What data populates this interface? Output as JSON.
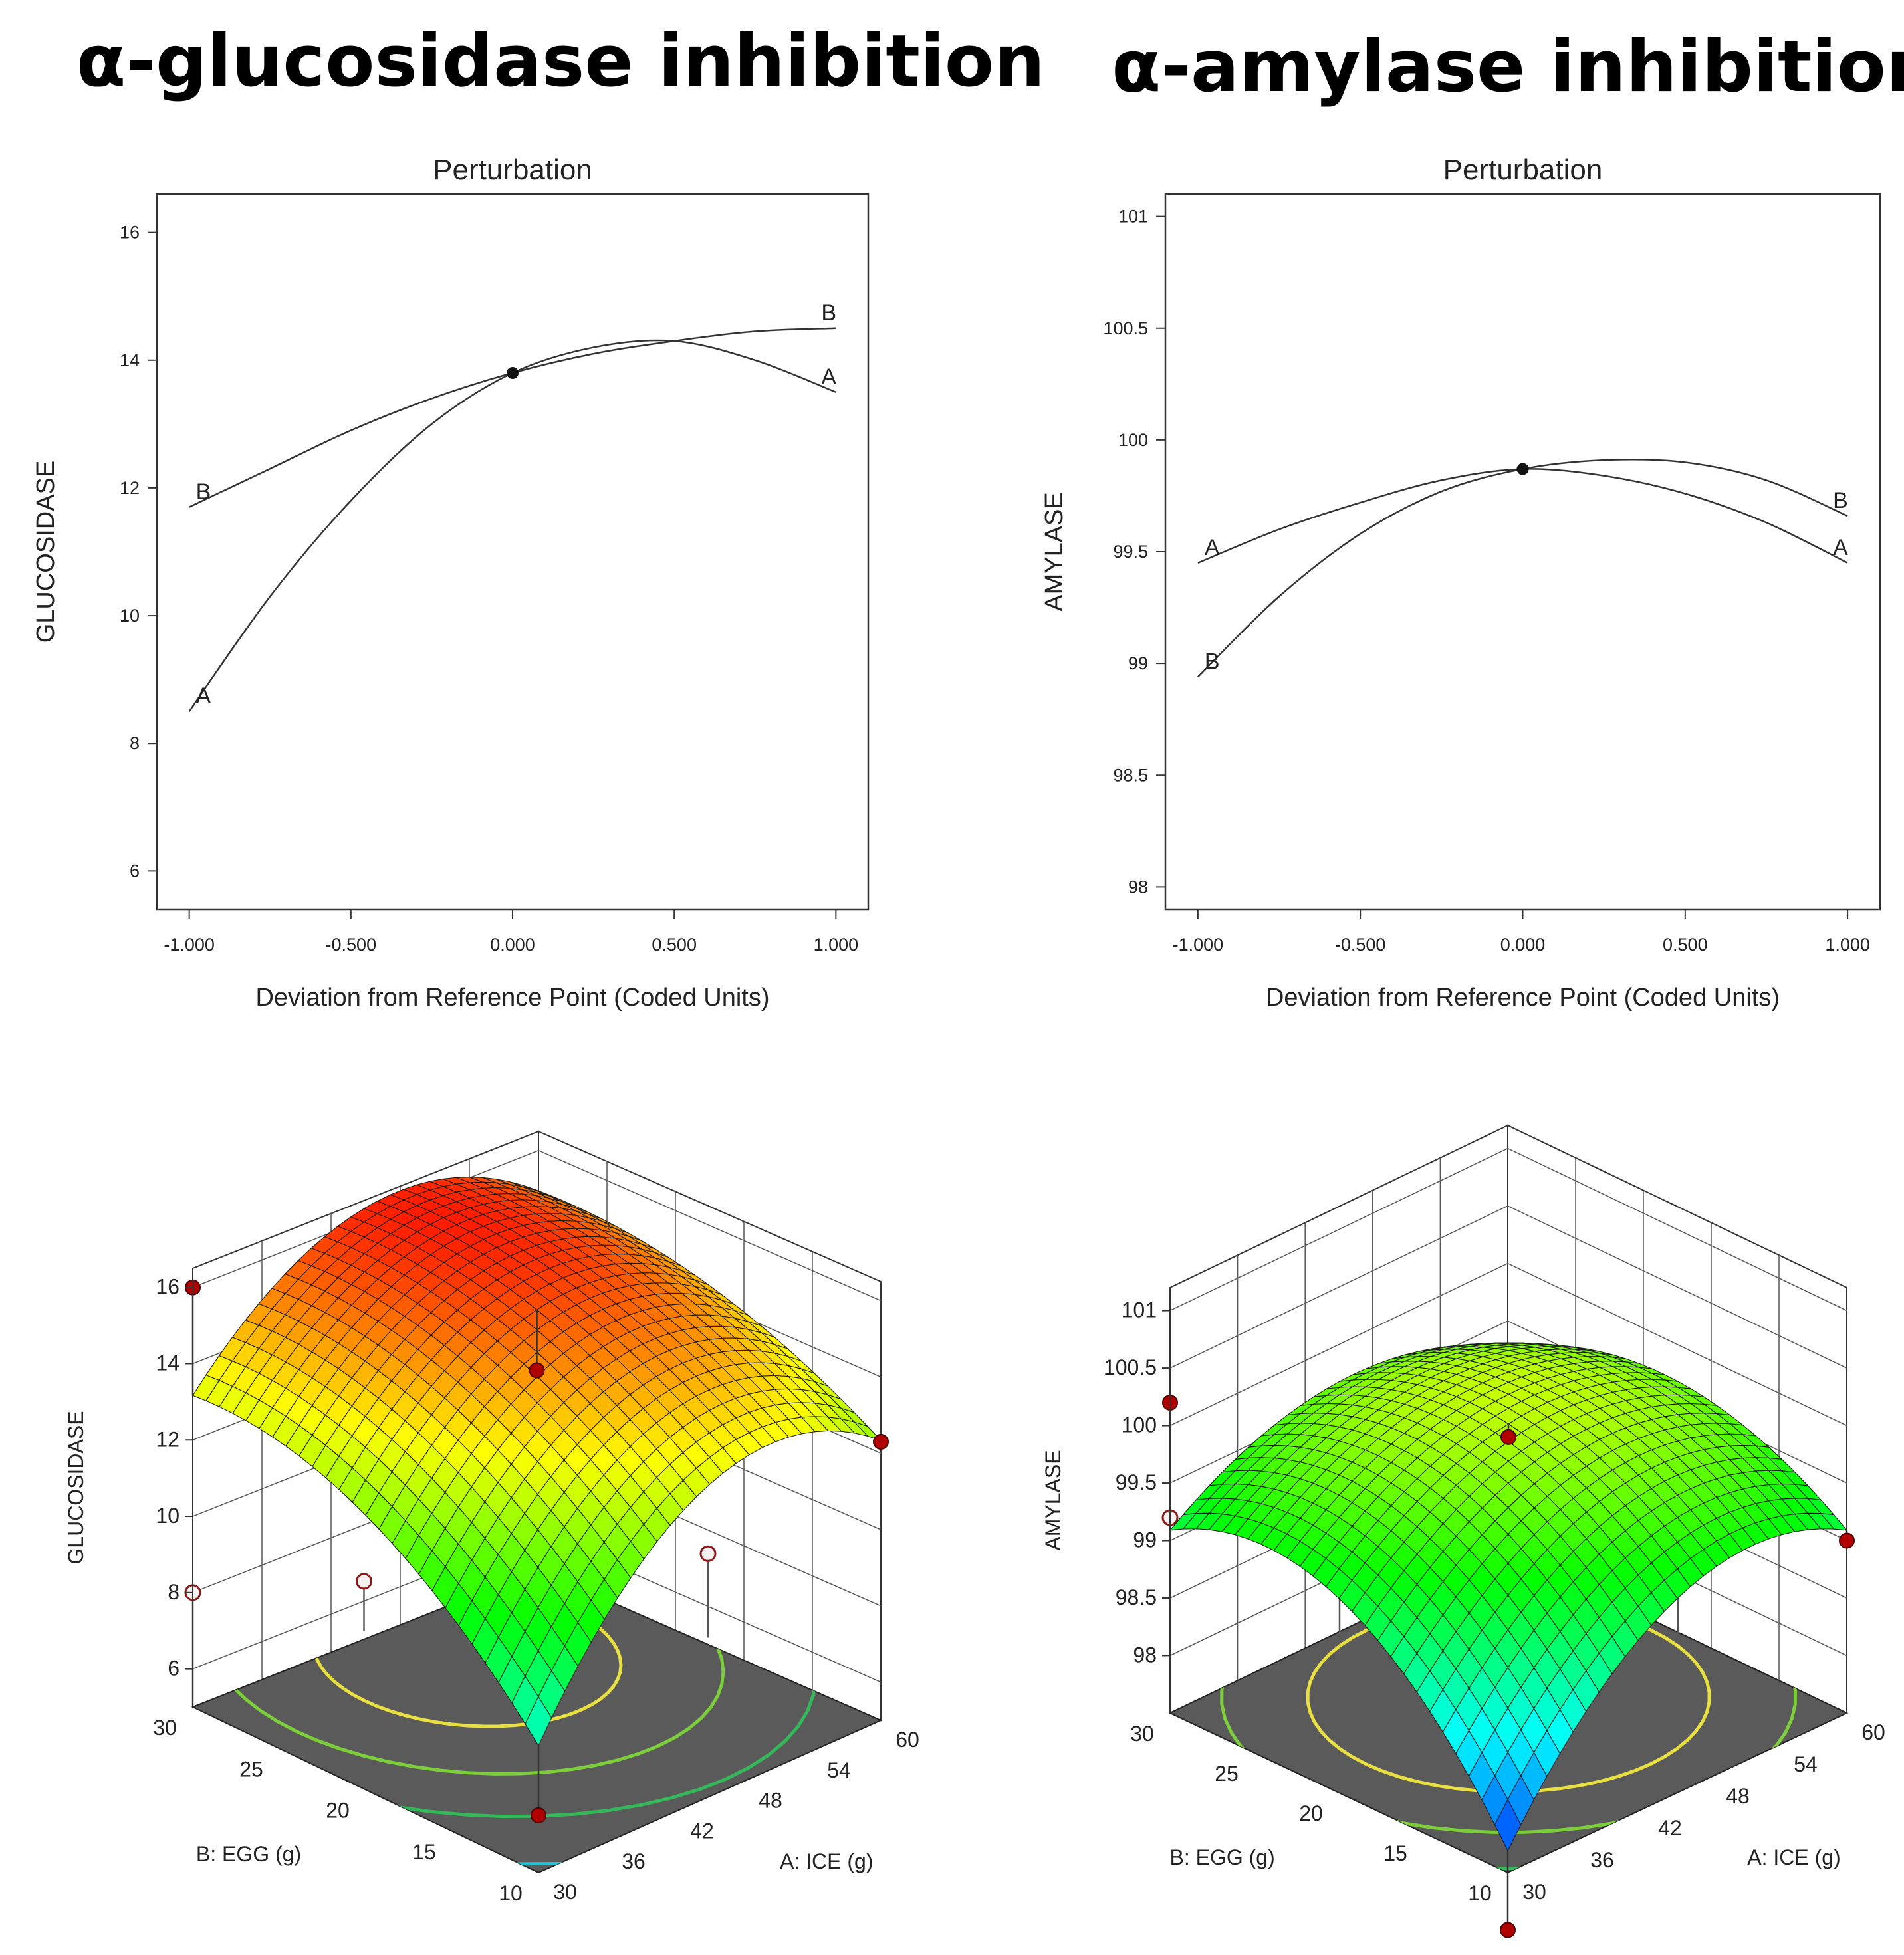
{
  "panels": {
    "left_title": "α-glucosidase inhibition",
    "right_title": "α-amylase inhibition"
  },
  "chart_data": [
    {
      "type": "line",
      "id": "glu-pert",
      "title": "Perturbation",
      "xlabel": "Deviation from Reference Point (Coded Units)",
      "ylabel": "GLUCOSIDASE",
      "xlim": [
        -1.1,
        1.1
      ],
      "ylim": [
        5.4,
        16.6
      ],
      "xticks": [
        -1,
        -0.5,
        0,
        0.5,
        1
      ],
      "xtick_labels": [
        "-1.000",
        "-0.500",
        "0.000",
        "0.500",
        "1.000"
      ],
      "yticks": [
        6,
        8,
        10,
        12,
        14,
        16
      ],
      "ytick_labels": [
        "6",
        "8",
        "10",
        "12",
        "14",
        "16"
      ],
      "reference_point": {
        "x": 0,
        "y": 13.8
      },
      "series": [
        {
          "name": "A",
          "x": [
            -1,
            -0.75,
            -0.5,
            -0.25,
            0,
            0.25,
            0.5,
            0.75,
            1
          ],
          "y": [
            8.5,
            10.3,
            11.8,
            13.0,
            13.8,
            14.2,
            14.3,
            14.0,
            13.5
          ]
        },
        {
          "name": "B",
          "x": [
            -1,
            -0.75,
            -0.5,
            -0.25,
            0,
            0.25,
            0.5,
            0.75,
            1
          ],
          "y": [
            11.7,
            12.3,
            12.9,
            13.4,
            13.8,
            14.1,
            14.3,
            14.45,
            14.5
          ]
        }
      ]
    },
    {
      "type": "line",
      "id": "amy-pert",
      "title": "Perturbation",
      "xlabel": "Deviation from Reference Point (Coded Units)",
      "ylabel": "AMYLASE",
      "xlim": [
        -1.1,
        1.1
      ],
      "ylim": [
        97.9,
        101.1
      ],
      "xticks": [
        -1,
        -0.5,
        0,
        0.5,
        1
      ],
      "xtick_labels": [
        "-1.000",
        "-0.500",
        "0.000",
        "0.500",
        "1.000"
      ],
      "yticks": [
        98,
        98.5,
        99,
        99.5,
        100,
        100.5,
        101
      ],
      "ytick_labels": [
        "98",
        "98.5",
        "99",
        "99.5",
        "100",
        "100.5",
        "101"
      ],
      "reference_point": {
        "x": 0,
        "y": 99.87
      },
      "series": [
        {
          "name": "A",
          "x": [
            -1,
            -0.75,
            -0.5,
            -0.25,
            0,
            0.25,
            0.5,
            0.75,
            1
          ],
          "y": [
            99.45,
            99.6,
            99.72,
            99.82,
            99.87,
            99.84,
            99.76,
            99.63,
            99.45
          ]
        },
        {
          "name": "B",
          "x": [
            -1,
            -0.75,
            -0.5,
            -0.25,
            0,
            0.25,
            0.5,
            0.75,
            1
          ],
          "y": [
            98.94,
            99.3,
            99.58,
            99.77,
            99.87,
            99.91,
            99.9,
            99.82,
            99.66
          ]
        }
      ]
    },
    {
      "type": "surface3d",
      "id": "glu-3d",
      "zlabel": "GLUCOSIDASE",
      "xlabel": "A: ICE (g)",
      "ylabel": "B: EGG (g)",
      "xticks": [
        "30",
        "36",
        "42",
        "48",
        "54",
        "60"
      ],
      "yticks": [
        "10",
        "15",
        "20",
        "25",
        "30"
      ],
      "zticks": [
        "6",
        "8",
        "10",
        "12",
        "14",
        "16"
      ],
      "zlim": [
        5,
        16.5
      ],
      "colormap": [
        "#0000ff",
        "#00ffff",
        "#00ff00",
        "#ffff00",
        "#ff0000"
      ],
      "contour_plane_color": "#5a5a5a",
      "design_points": [
        {
          "a": 0,
          "b": 1,
          "z": 16.0,
          "above": true
        },
        {
          "a": 0.5,
          "b": 0.5,
          "z": 14.0,
          "above": true
        },
        {
          "a": 1,
          "b": 0,
          "z": 12.3,
          "above": true
        },
        {
          "a": 0,
          "b": 0,
          "z": 6.5,
          "above": true
        },
        {
          "a": 0,
          "b": 1,
          "z": 8.0,
          "above": false
        },
        {
          "a": 0.5,
          "b": 1,
          "z": 6.3,
          "above": false
        },
        {
          "a": 1,
          "b": 0.5,
          "z": 7.2,
          "above": false
        }
      ]
    },
    {
      "type": "surface3d",
      "id": "amy-3d",
      "zlabel": "AMYLASE",
      "xlabel": "A: ICE (g)",
      "ylabel": "B: EGG (g)",
      "xticks": [
        "30",
        "36",
        "42",
        "48",
        "54",
        "60"
      ],
      "yticks": [
        "10",
        "15",
        "20",
        "25",
        "30"
      ],
      "zticks": [
        "98",
        "98.5",
        "99",
        "99.5",
        "100",
        "100.5",
        "101"
      ],
      "zlim": [
        97.5,
        101.2
      ],
      "colormap": [
        "#0000ff",
        "#00ffff",
        "#00ff00",
        "#ffff00",
        "#ff0000"
      ],
      "contour_plane_color": "#5a5a5a",
      "design_points": [
        {
          "a": 0,
          "b": 1,
          "z": 100.2,
          "above": true
        },
        {
          "a": 0.5,
          "b": 0.5,
          "z": 99.9,
          "above": true
        },
        {
          "a": 1,
          "b": 0,
          "z": 99.0,
          "above": true
        },
        {
          "a": 0,
          "b": 0,
          "z": 97.0,
          "above": true
        },
        {
          "a": 0,
          "b": 1,
          "z": 99.2,
          "above": false
        },
        {
          "a": 0.5,
          "b": 1,
          "z": 98.9,
          "above": false
        },
        {
          "a": 1,
          "b": 0.5,
          "z": 98.4,
          "above": false
        }
      ]
    }
  ]
}
